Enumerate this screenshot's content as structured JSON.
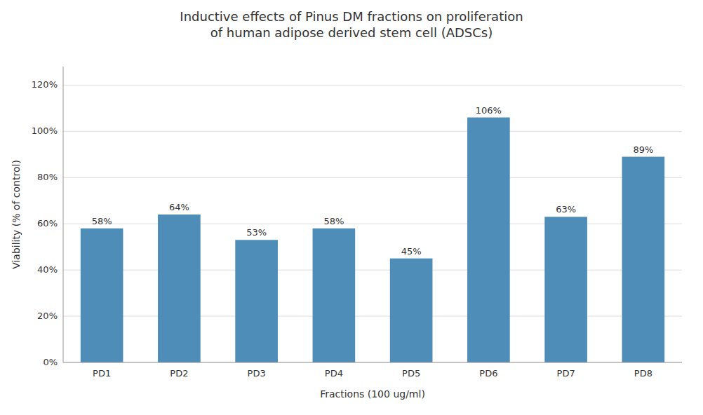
{
  "chart_data": {
    "type": "bar",
    "title": "Inductive effects of Pinus DM fractions on proliferation\nof human adipose derived stem cell (ADSCs)",
    "x_label": "Fractions (100 ug/ml)",
    "y_label": "Viability (% of control)",
    "categories": [
      "PD1",
      "PD2",
      "PD3",
      "PD4",
      "PD5",
      "PD6",
      "PD7",
      "PD8"
    ],
    "values": [
      0.58,
      0.64,
      0.53,
      0.58,
      0.45,
      1.06,
      0.63,
      0.89
    ],
    "value_labels": [
      "58%",
      "64%",
      "53%",
      "58%",
      "45%",
      "106%",
      "63%",
      "89%"
    ],
    "data_labels": true,
    "color": "#4d8db8",
    "ylim": [
      0,
      1.28
    ],
    "yticks": [
      {
        "value": 0,
        "label": "0%"
      },
      {
        "value": 0.2,
        "label": "20%"
      },
      {
        "value": 0.4,
        "label": "40%"
      },
      {
        "value": 0.6,
        "label": "60%"
      },
      {
        "value": 0.8,
        "label": "80%"
      },
      {
        "value": 1.0,
        "label": "100%"
      },
      {
        "value": 1.2,
        "label": "120%"
      }
    ],
    "grid": true
  }
}
